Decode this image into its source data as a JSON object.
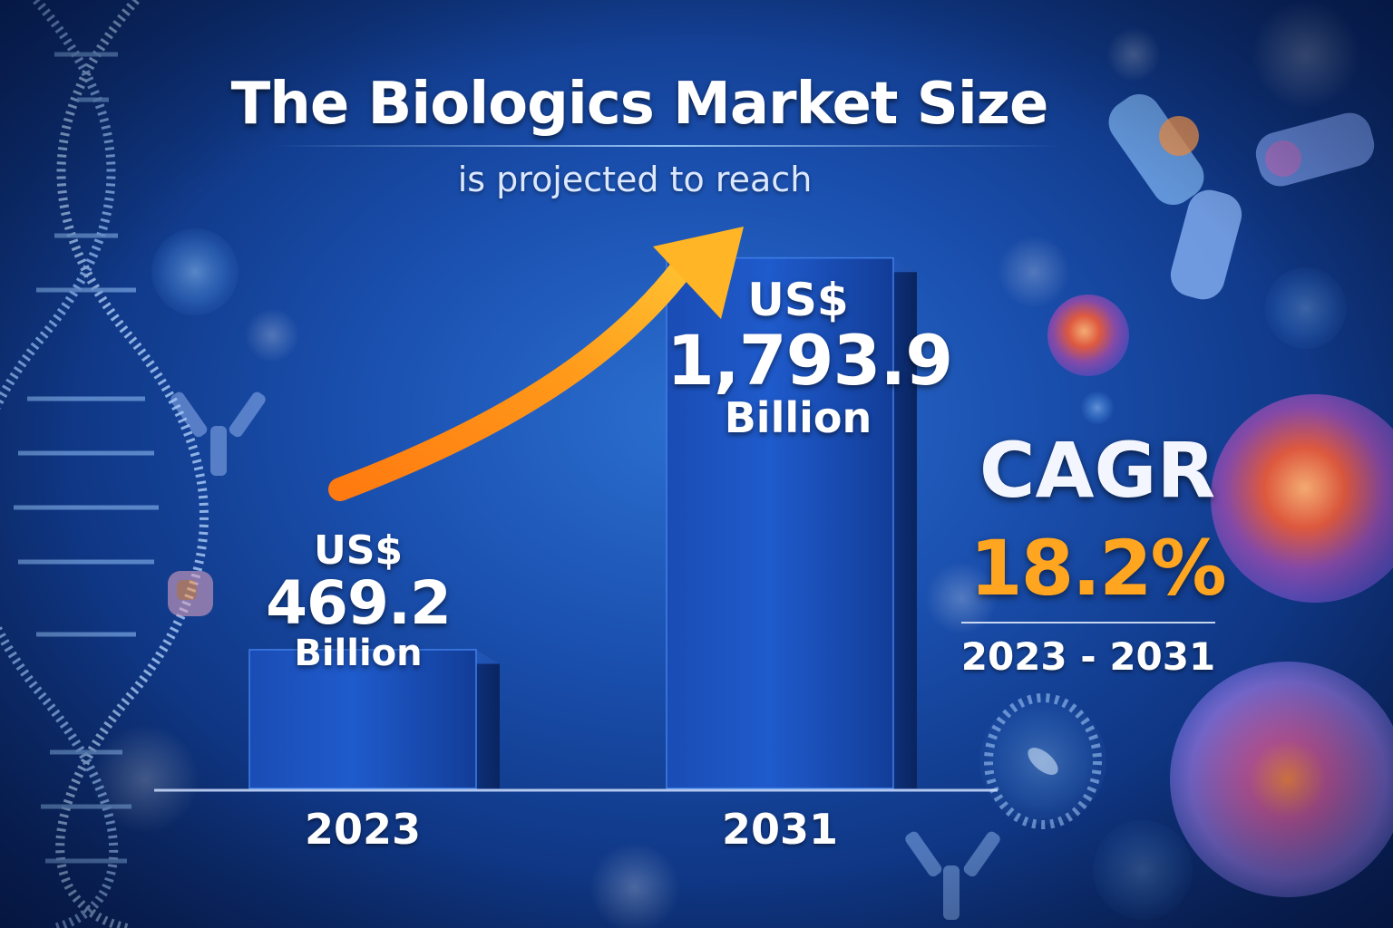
{
  "header": {
    "title": "The Biologics Market Size",
    "subtitle": "is projected to reach"
  },
  "chart_data": {
    "type": "bar",
    "categories": [
      "2023",
      "2031"
    ],
    "values": [
      469.2,
      1793.9
    ],
    "unit": "Billion",
    "currency": "US$",
    "value_labels": [
      {
        "currency": "US$",
        "number": "469.2",
        "unit": "Billion"
      },
      {
        "currency": "US$",
        "number": "1,793.9",
        "unit": "Billion"
      }
    ],
    "title": "The Biologics Market Size",
    "subtitle": "is projected to reach",
    "xlabel": "",
    "ylabel": "",
    "ylim": [
      0,
      1900
    ],
    "grid": false,
    "annotations": [
      {
        "type": "growth-arrow",
        "from": "2023",
        "to": "2031",
        "color": "#ff9a1a"
      }
    ]
  },
  "cagr": {
    "label": "CAGR",
    "value": "18.2%",
    "period": "2023 - 2031"
  },
  "colors": {
    "background": "#1a4fae",
    "bar": "#1c56c4",
    "arrow": "#ff9a1a",
    "cagr_value": "#ffa51f",
    "text": "#ffffff"
  },
  "decorations": {
    "left": "dna-helix",
    "right": [
      "antibody",
      "cell",
      "virus"
    ]
  }
}
